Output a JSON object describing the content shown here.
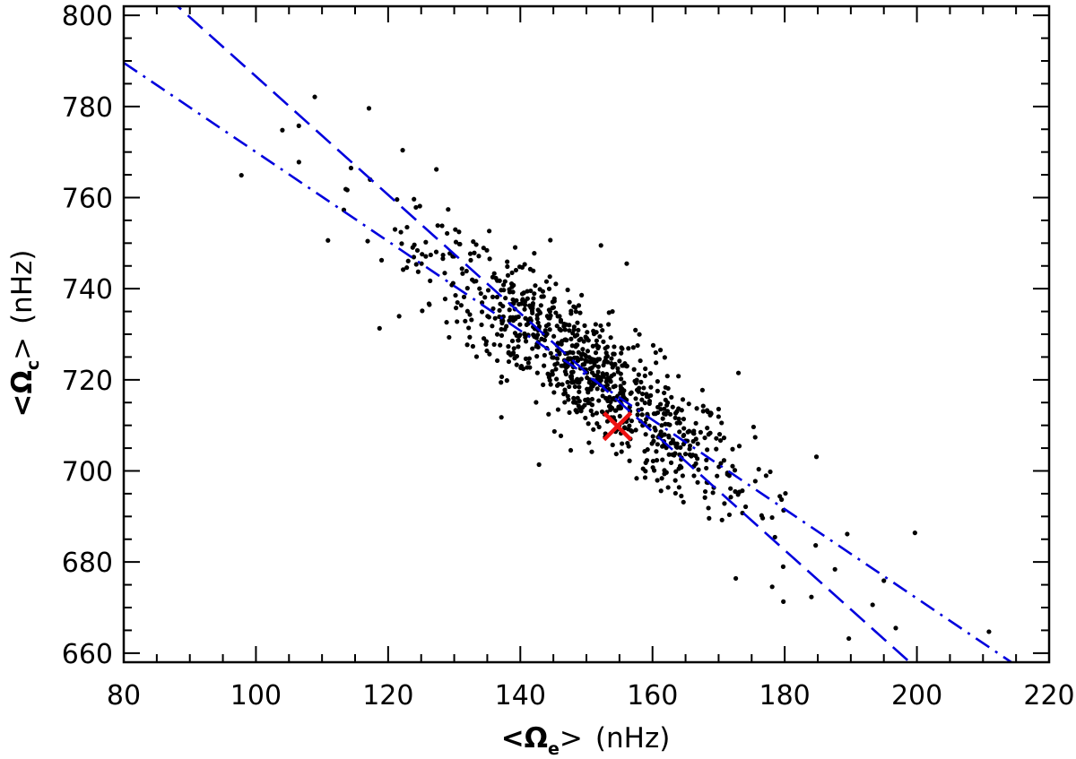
{
  "chart_data": {
    "type": "scatter",
    "title": "",
    "xlabel": {
      "open": "<Ω",
      "sub": "e",
      "close": ">",
      "unit": "(nHz)"
    },
    "ylabel": {
      "open": "<Ω",
      "sub": "c",
      "close": ">",
      "unit": "(nHz)"
    },
    "xlim": [
      80,
      220
    ],
    "ylim": [
      658,
      802
    ],
    "xticks": [
      80,
      100,
      120,
      140,
      160,
      180,
      200,
      220
    ],
    "yticks": [
      660,
      680,
      700,
      720,
      740,
      760,
      780,
      800
    ],
    "x_minor_step": 5,
    "y_minor_step": 5,
    "grid": false,
    "scatter": {
      "color": "#000000",
      "n_points": 900,
      "center": [
        150,
        722
      ],
      "x_sd": 12.5,
      "slope": -1.05,
      "y_resid_sd": 7.0,
      "outliers": [
        [
          97.8,
          764.9
        ],
        [
          106.5,
          767.8
        ],
        [
          108.9,
          782.1
        ],
        [
          117.1,
          779.6
        ],
        [
          122.2,
          770.4
        ],
        [
          127.3,
          766.2
        ],
        [
          113.3,
          757.3
        ],
        [
          104.0,
          774.8
        ],
        [
          110.9,
          750.6
        ],
        [
          118.7,
          731.3
        ],
        [
          156.1,
          745.5
        ],
        [
          152.2,
          749.5
        ],
        [
          173.0,
          721.5
        ],
        [
          184.8,
          703.1
        ],
        [
          189.7,
          663.2
        ],
        [
          196.8,
          665.5
        ],
        [
          199.7,
          686.4
        ],
        [
          210.9,
          664.7
        ],
        [
          193.3,
          670.6
        ],
        [
          172.6,
          676.4
        ],
        [
          179.8,
          671.3
        ],
        [
          187.6,
          678.4
        ],
        [
          195.0,
          675.9
        ]
      ]
    },
    "marker": {
      "x": 154.7,
      "y": 709.8,
      "symbol": "x",
      "color": "#ee1111"
    },
    "lines": [
      {
        "style": "dashed",
        "color": "#0000dd",
        "slope": -1.3,
        "intercept": 916.6
      },
      {
        "style": "dash-dot",
        "color": "#0000dd",
        "slope": -0.98,
        "intercept": 868.0
      }
    ]
  }
}
